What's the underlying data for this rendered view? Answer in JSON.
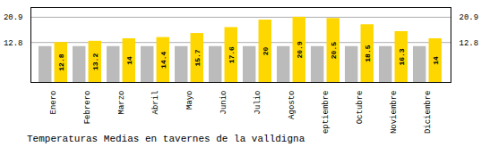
{
  "chart_data": {
    "type": "bar",
    "title": "Temperaturas Medias en tavernes de la valldigna",
    "categories": [
      "Enero",
      "Febrero",
      "Marzo",
      "Abril",
      "Mayo",
      "Junio",
      "Julio",
      "Agosto",
      "Septiembre",
      "Octubre",
      "Noviembre",
      "Diciembre"
    ],
    "series": [
      {
        "color": "#BBBBBB",
        "values": [
          11.5,
          11.5,
          11.5,
          11.5,
          11.5,
          11.5,
          11.5,
          11.5,
          11.5,
          11.5,
          11.5,
          11.5
        ]
      },
      {
        "color": "#FFD700",
        "values": [
          12.8,
          13.2,
          14.0,
          14.4,
          15.7,
          17.6,
          20.0,
          20.9,
          20.5,
          18.5,
          16.3,
          14.0
        ],
        "data_labels": true
      }
    ],
    "ylim": [
      0,
      24.0
    ],
    "yticks": [
      12.8,
      20.9
    ],
    "grid": true
  }
}
